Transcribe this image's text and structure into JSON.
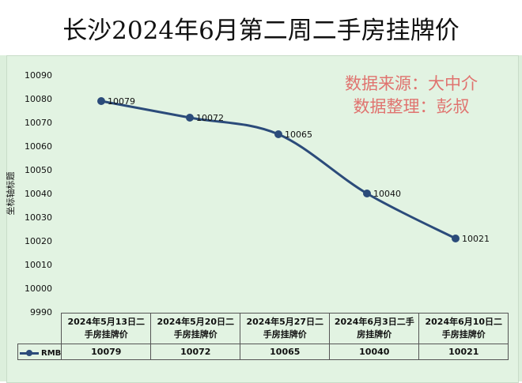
{
  "title": "长沙2024年6月第二周二手房挂牌价",
  "watermark": {
    "line1": "数据来源：大中介",
    "line2": "数据整理：彭叔"
  },
  "colors": {
    "series": "#2b4b7a",
    "background": "#dcefdc",
    "watermark": "#e0736f"
  },
  "chart_data": {
    "type": "line",
    "ylabel": "坐标轴标题",
    "ylim": [
      9990,
      10090
    ],
    "yticks": [
      10090,
      10080,
      10070,
      10060,
      10050,
      10040,
      10030,
      10020,
      10010,
      10000,
      9990
    ],
    "categories": [
      "2024年5月13日二手房挂牌价",
      "2024年5月20日二手房挂牌价",
      "2024年5月27日二手房挂牌价",
      "2024年6月3日二手房挂牌价",
      "2024年6月10日二手房挂牌价"
    ],
    "category_lines": [
      [
        "2024年5月13日二",
        "手房挂牌价"
      ],
      [
        "2024年5月20日二",
        "手房挂牌价"
      ],
      [
        "2024年5月27日二",
        "手房挂牌价"
      ],
      [
        "2024年6月3日二手",
        "房挂牌价"
      ],
      [
        "2024年6月10日二",
        "手房挂牌价"
      ]
    ],
    "series": [
      {
        "name": "RMB",
        "values": [
          10079,
          10072,
          10065,
          10040,
          10021
        ]
      }
    ],
    "data_labels": [
      "10079",
      "10072",
      "10065",
      "10040",
      "10021"
    ],
    "grid": false,
    "legend": "data-table"
  }
}
